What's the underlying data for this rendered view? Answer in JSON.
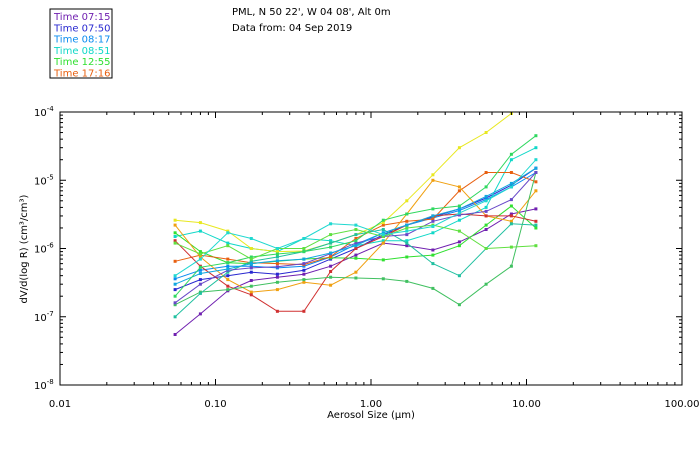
{
  "chart_data": {
    "type": "line",
    "title_lines": [
      "PML, N 50 22', W 04 08', Alt 0m",
      "Data from: 04 Sep 2019"
    ],
    "xlabel": "Aerosol Size (μm)",
    "ylabel": "dV/d(log R) (cm³/cm³)",
    "x_scale": "log",
    "y_scale": "log",
    "xlim": [
      0.01,
      100
    ],
    "ylim": [
      1e-08,
      0.0001
    ],
    "x_ticks": [
      {
        "value": 0.01,
        "label": "0.01"
      },
      {
        "value": 0.1,
        "label": "0.10"
      },
      {
        "value": 1,
        "label": "1.00"
      },
      {
        "value": 10,
        "label": "10.00"
      },
      {
        "value": 100,
        "label": "100.00"
      }
    ],
    "y_ticks": [
      {
        "value": 1e-08,
        "exp": "-8"
      },
      {
        "value": 1e-07,
        "exp": "-7"
      },
      {
        "value": 1e-06,
        "exp": "-6"
      },
      {
        "value": 1e-05,
        "exp": "-5"
      },
      {
        "value": 0.0001,
        "exp": "-4"
      }
    ],
    "grid": false,
    "legend_position": "top-left, outside plot",
    "x": [
      0.055,
      0.08,
      0.12,
      0.17,
      0.25,
      0.37,
      0.55,
      0.8,
      1.2,
      1.7,
      2.5,
      3.7,
      5.5,
      8,
      11.5
    ],
    "series": [
      {
        "name": "Time 07:15",
        "color": "#7020b0",
        "values": [
          5.5e-08,
          1.1e-07,
          2.4e-07,
          3.4e-07,
          3.8e-07,
          4.2e-07,
          5.5e-07,
          8e-07,
          1.2e-06,
          1.1e-06,
          9.5e-07,
          1.25e-06,
          1.9e-06,
          3.2e-06,
          3.8e-06
        ]
      },
      {
        "name": "Time 07:50",
        "color": "#2828d0",
        "values": [
          2.5e-07,
          3.5e-07,
          4e-07,
          4.5e-07,
          4.2e-07,
          4.8e-07,
          7e-07,
          1e-06,
          1.6e-06,
          2.2e-06,
          2.9e-06,
          3.8e-06,
          5.5e-06,
          8.5e-06,
          1.5e-05
        ]
      },
      {
        "name": "Time 08:17",
        "color": "#0a8cf0",
        "values": [
          3.6e-07,
          4.8e-07,
          5.5e-07,
          5.5e-07,
          5.2e-07,
          5.5e-07,
          7.5e-07,
          1.15e-06,
          1.7e-06,
          2.2e-06,
          2.8e-06,
          3.6e-06,
          5.2e-06,
          8e-06,
          1.3e-05
        ]
      },
      {
        "name": "Time 08:51",
        "color": "#10d8c8",
        "values": [
          1.5e-06,
          1.8e-06,
          1.2e-06,
          1e-06,
          9e-07,
          1.4e-06,
          1.3e-06,
          1.1e-06,
          1.3e-06,
          1.3e-06,
          1.7e-06,
          2.6e-06,
          4e-06,
          2e-05,
          3e-05
        ]
      },
      {
        "name": "Time 12:55",
        "color": "#30e030",
        "values": [
          1.7e-06,
          9e-07,
          6.2e-07,
          6e-07,
          6.5e-07,
          7e-07,
          7.3e-07,
          7.2e-07,
          6.8e-07,
          7.5e-07,
          8e-07,
          1.1e-06,
          2.2e-06,
          4.2e-06,
          2e-06
        ]
      },
      {
        "name": "Time 17:16",
        "color": "#e86010",
        "values": [
          6.5e-07,
          8e-07,
          7e-07,
          6.2e-07,
          6e-07,
          5.8e-07,
          7.6e-07,
          1.4e-06,
          2.2e-06,
          2.5e-06,
          2.7e-06,
          7e-06,
          1.3e-05,
          1.3e-05,
          9.5e-06
        ]
      },
      {
        "name": "",
        "color": "#e8e820",
        "values": [
          2.6e-06,
          2.4e-06,
          1.8e-06,
          1e-06,
          9e-07,
          9.2e-07,
          1.2e-06,
          1.6e-06,
          2.4e-06,
          5e-06,
          1.2e-05,
          3e-05,
          5e-05,
          9.5e-05,
          null
        ]
      },
      {
        "name": "",
        "color": "#f0a010",
        "values": [
          2.2e-06,
          7.5e-07,
          3.5e-07,
          2.3e-07,
          2.5e-07,
          3.2e-07,
          2.9e-07,
          4.5e-07,
          1.2e-06,
          3.2e-06,
          1e-05,
          8e-06,
          3e-06,
          2.5e-06,
          7e-06
        ]
      },
      {
        "name": "",
        "color": "#d03030",
        "values": [
          1.3e-06,
          5.5e-07,
          2.8e-07,
          2.1e-07,
          1.2e-07,
          1.2e-07,
          4.6e-07,
          1e-06,
          1.5e-06,
          2.2e-06,
          3e-06,
          3.2e-06,
          3e-06,
          3e-06,
          2.5e-06
        ]
      },
      {
        "name": "",
        "color": "#40c060",
        "values": [
          1.5e-07,
          2.3e-07,
          2.5e-07,
          2.8e-07,
          3.2e-07,
          3.5e-07,
          3.8e-07,
          3.7e-07,
          3.6e-07,
          3.3e-07,
          2.6e-07,
          1.5e-07,
          3e-07,
          5.5e-07,
          1.3e-05
        ]
      },
      {
        "name": "",
        "color": "#20c0a0",
        "values": [
          1e-07,
          2.2e-07,
          4.5e-07,
          6.5e-07,
          7.5e-07,
          9e-07,
          1.2e-06,
          1.6e-06,
          1.9e-06,
          1.2e-06,
          6e-07,
          4e-07,
          1e-06,
          2.3e-06,
          2.2e-06
        ]
      },
      {
        "name": "",
        "color": "#6848c8",
        "values": [
          1.6e-07,
          3e-07,
          4.8e-07,
          5.2e-07,
          5.4e-07,
          6e-07,
          8.4e-07,
          1.2e-06,
          1.5e-06,
          1.6e-06,
          2.5e-06,
          3.1e-06,
          3.5e-06,
          5.2e-06,
          1.3e-05
        ]
      },
      {
        "name": "",
        "color": "#10a8e0",
        "values": [
          3e-07,
          4.3e-07,
          5e-07,
          6e-07,
          6.6e-07,
          7e-07,
          8.6e-07,
          1.1e-06,
          1.7e-06,
          2.2e-06,
          3e-06,
          3.8e-06,
          5.8e-06,
          9e-06,
          1.5e-05
        ]
      },
      {
        "name": "",
        "color": "#30d860",
        "values": [
          2e-07,
          5.3e-07,
          6.2e-07,
          7.5e-07,
          8.3e-07,
          9e-07,
          1.05e-06,
          1.3e-06,
          2.6e-06,
          3.2e-06,
          3.8e-06,
          4.2e-06,
          8e-06,
          2.4e-05,
          4.5e-05
        ]
      },
      {
        "name": "",
        "color": "#60e040",
        "values": [
          1.2e-06,
          8.3e-07,
          1.1e-06,
          7e-07,
          1e-06,
          1e-06,
          1.6e-06,
          1.9e-06,
          1.5e-06,
          2e-06,
          2.2e-06,
          1.8e-06,
          1e-06,
          1.05e-06,
          1.1e-06
        ]
      },
      {
        "name": "",
        "color": "#20d8d0",
        "values": [
          4e-07,
          7e-07,
          1.7e-06,
          1.4e-06,
          1e-06,
          1.4e-06,
          2.3e-06,
          2.2e-06,
          1.6e-06,
          1.8e-06,
          2.1e-06,
          3.3e-06,
          5e-06,
          8e-06,
          2e-05
        ]
      }
    ]
  }
}
